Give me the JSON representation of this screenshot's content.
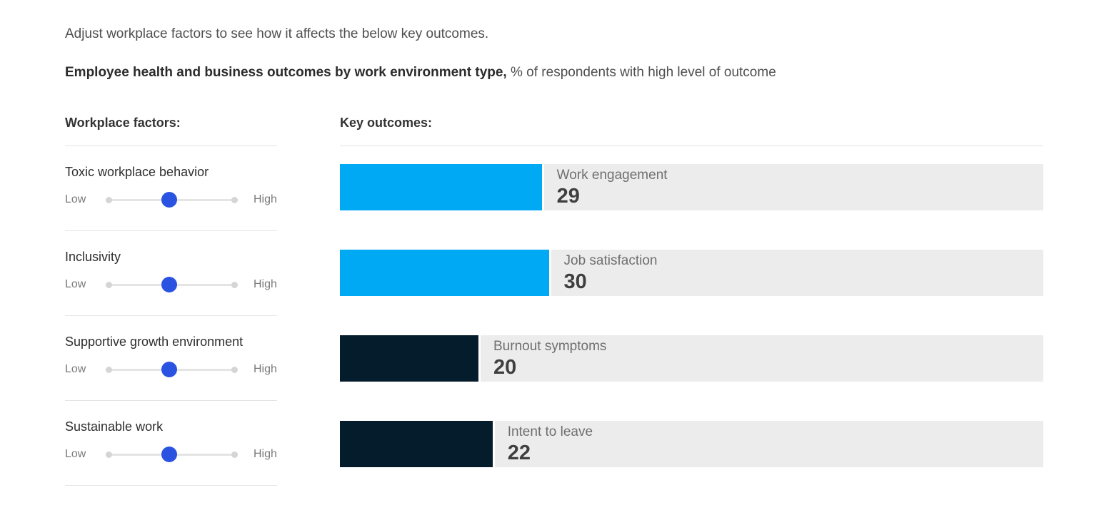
{
  "header": {
    "instruction": "Adjust workplace factors to see how it affects the below key outcomes.",
    "title_bold": "Employee health and business outcomes by work environment type,",
    "title_rest": "% of respondents with high level of outcome"
  },
  "factors_panel": {
    "heading": "Workplace factors:",
    "low_label": "Low",
    "high_label": "High",
    "factors": [
      {
        "label": "Toxic workplace behavior",
        "position_pct": 48
      },
      {
        "label": "Inclusivity",
        "position_pct": 48
      },
      {
        "label": "Supportive growth environment",
        "position_pct": 48
      },
      {
        "label": "Sustainable work",
        "position_pct": 48
      }
    ]
  },
  "outcomes_panel": {
    "heading": "Key outcomes:",
    "outcomes": [
      {
        "label": "Work engagement",
        "value": 29,
        "color": "#00a9f4"
      },
      {
        "label": "Job satisfaction",
        "value": 30,
        "color": "#00a9f4"
      },
      {
        "label": "Burnout symptoms",
        "value": 20,
        "color": "#051c2c"
      },
      {
        "label": "Intent to leave",
        "value": 22,
        "color": "#051c2c"
      }
    ]
  },
  "colors": {
    "positive_bar": "#00a9f4",
    "negative_bar": "#051c2c",
    "bar_background": "#ececec",
    "slider_thumb": "#2b53e1"
  },
  "chart_data": {
    "type": "bar",
    "orientation": "horizontal",
    "title": "Employee health and business outcomes by work environment type",
    "subtitle": "% of respondents with high level of outcome",
    "categories": [
      "Work engagement",
      "Job satisfaction",
      "Burnout symptoms",
      "Intent to leave"
    ],
    "values": [
      29,
      30,
      20,
      22
    ],
    "bar_colors": [
      "#00a9f4",
      "#00a9f4",
      "#051c2c",
      "#051c2c"
    ],
    "xlim": [
      0,
      100
    ],
    "grid": false,
    "legend": false,
    "value_labels": [
      29,
      30,
      20,
      22
    ],
    "controls": {
      "type": "sliders",
      "range_labels": [
        "Low",
        "High"
      ],
      "items": [
        {
          "name": "Toxic workplace behavior",
          "position_pct": 48
        },
        {
          "name": "Inclusivity",
          "position_pct": 48
        },
        {
          "name": "Supportive growth environment",
          "position_pct": 48
        },
        {
          "name": "Sustainable work",
          "position_pct": 48
        }
      ]
    }
  }
}
